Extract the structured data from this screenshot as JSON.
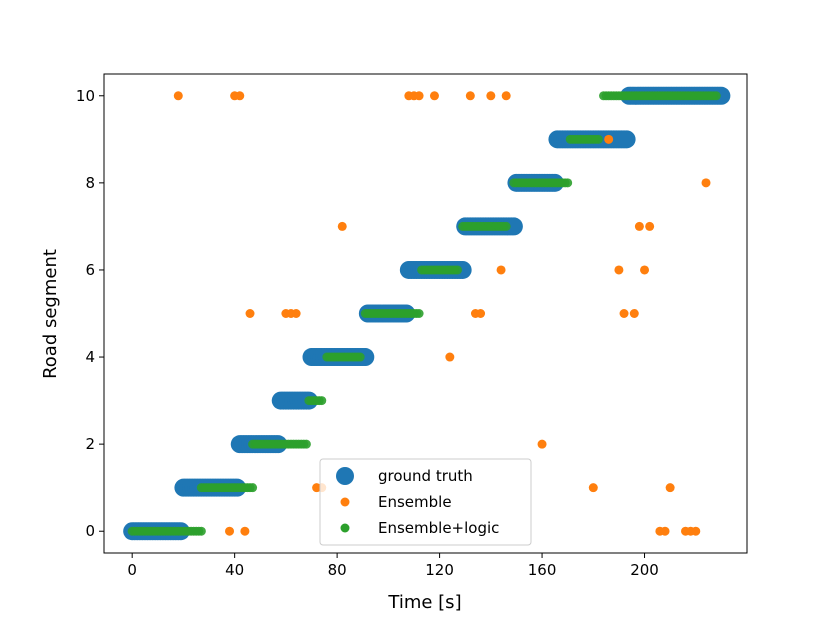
{
  "chart_data": {
    "type": "scatter",
    "xlabel": "Time [s]",
    "ylabel": "Road segment",
    "xlim": [
      -11,
      240
    ],
    "ylim": [
      -0.5,
      10.5
    ],
    "xticks": [
      0,
      40,
      80,
      120,
      160,
      200
    ],
    "yticks": [
      0,
      2,
      4,
      6,
      8,
      10
    ],
    "grid": false,
    "legend": "lower-center",
    "series": [
      {
        "name": "ground truth",
        "color": "#1f77b4",
        "marker": "large-circle",
        "segments": [
          {
            "y": 0,
            "x_start": 0,
            "x_end": 19
          },
          {
            "y": 1,
            "x_start": 20,
            "x_end": 41
          },
          {
            "y": 2,
            "x_start": 42,
            "x_end": 57
          },
          {
            "y": 3,
            "x_start": 58,
            "x_end": 69
          },
          {
            "y": 4,
            "x_start": 70,
            "x_end": 91
          },
          {
            "y": 5,
            "x_start": 92,
            "x_end": 107
          },
          {
            "y": 6,
            "x_start": 108,
            "x_end": 129
          },
          {
            "y": 7,
            "x_start": 130,
            "x_end": 149
          },
          {
            "y": 8,
            "x_start": 150,
            "x_end": 165
          },
          {
            "y": 9,
            "x_start": 166,
            "x_end": 193
          },
          {
            "y": 10,
            "x_start": 194,
            "x_end": 230
          }
        ]
      },
      {
        "name": "Ensemble",
        "color": "#ff7f0e",
        "marker": "small-circle",
        "points": [
          {
            "x": 18,
            "y": 10
          },
          {
            "x": 40,
            "y": 10
          },
          {
            "x": 42,
            "y": 10
          },
          {
            "x": 108,
            "y": 10
          },
          {
            "x": 110,
            "y": 10
          },
          {
            "x": 112,
            "y": 10
          },
          {
            "x": 118,
            "y": 10
          },
          {
            "x": 132,
            "y": 10
          },
          {
            "x": 140,
            "y": 10
          },
          {
            "x": 146,
            "y": 10
          },
          {
            "x": 186,
            "y": 9
          },
          {
            "x": 224,
            "y": 8
          },
          {
            "x": 82,
            "y": 7
          },
          {
            "x": 198,
            "y": 7
          },
          {
            "x": 202,
            "y": 7
          },
          {
            "x": 144,
            "y": 6
          },
          {
            "x": 190,
            "y": 6
          },
          {
            "x": 200,
            "y": 6
          },
          {
            "x": 46,
            "y": 5
          },
          {
            "x": 60,
            "y": 5
          },
          {
            "x": 62,
            "y": 5
          },
          {
            "x": 64,
            "y": 5
          },
          {
            "x": 134,
            "y": 5
          },
          {
            "x": 136,
            "y": 5
          },
          {
            "x": 192,
            "y": 5
          },
          {
            "x": 196,
            "y": 5
          },
          {
            "x": 124,
            "y": 4
          },
          {
            "x": 160,
            "y": 2
          },
          {
            "x": 72,
            "y": 1
          },
          {
            "x": 74,
            "y": 1
          },
          {
            "x": 180,
            "y": 1
          },
          {
            "x": 210,
            "y": 1
          },
          {
            "x": 38,
            "y": 0
          },
          {
            "x": 44,
            "y": 0
          },
          {
            "x": 206,
            "y": 0
          },
          {
            "x": 208,
            "y": 0
          },
          {
            "x": 216,
            "y": 0
          },
          {
            "x": 218,
            "y": 0
          },
          {
            "x": 220,
            "y": 0
          }
        ]
      },
      {
        "name": "Ensemble+logic",
        "color": "#2ca02c",
        "marker": "small-circle",
        "segments": [
          {
            "y": 0,
            "x_start": 0,
            "x_end": 27
          },
          {
            "y": 1,
            "x_start": 27,
            "x_end": 47
          },
          {
            "y": 2,
            "x_start": 47,
            "x_end": 68
          },
          {
            "y": 3,
            "x_start": 69,
            "x_end": 74
          },
          {
            "y": 4,
            "x_start": 76,
            "x_end": 89
          },
          {
            "y": 5,
            "x_start": 91,
            "x_end": 112
          },
          {
            "y": 6,
            "x_start": 113,
            "x_end": 127
          },
          {
            "y": 7,
            "x_start": 129,
            "x_end": 146
          },
          {
            "y": 8,
            "x_start": 149,
            "x_end": 170
          },
          {
            "y": 9,
            "x_start": 171,
            "x_end": 182
          },
          {
            "y": 10,
            "x_start": 184,
            "x_end": 228
          }
        ]
      }
    ]
  }
}
